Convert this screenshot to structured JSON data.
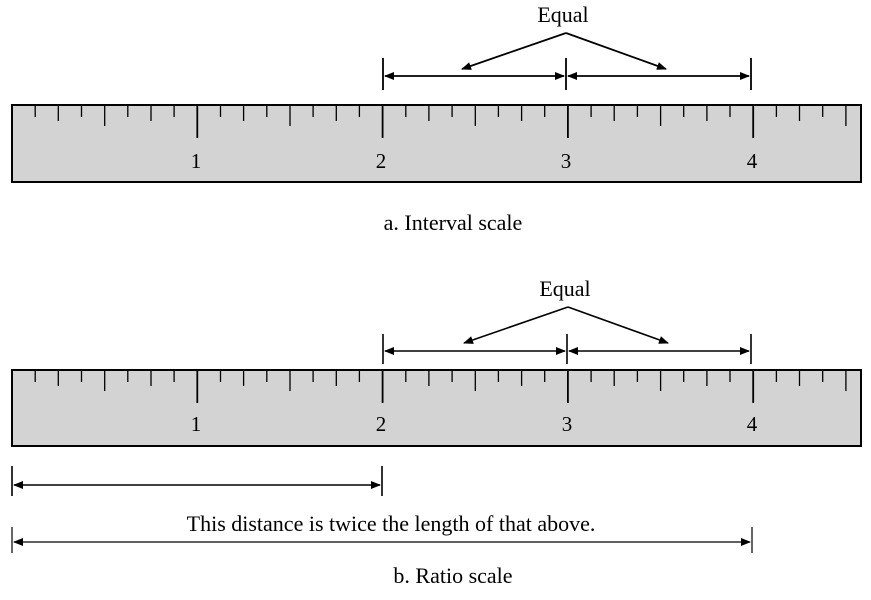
{
  "panels": [
    {
      "id": "interval",
      "caption": "a. Interval scale",
      "equal_label": "Equal",
      "ruler_labels": [
        "1",
        "2",
        "3",
        "4"
      ]
    },
    {
      "id": "ratio",
      "caption": "b. Ratio scale",
      "equal_label": "Equal",
      "ruler_labels": [
        "1",
        "2",
        "3",
        "4"
      ],
      "distance_note": "This distance is twice the length of that above."
    }
  ],
  "colors": {
    "ruler_fill": "#d3d3d3",
    "stroke": "#000000",
    "background": "#ffffff"
  }
}
